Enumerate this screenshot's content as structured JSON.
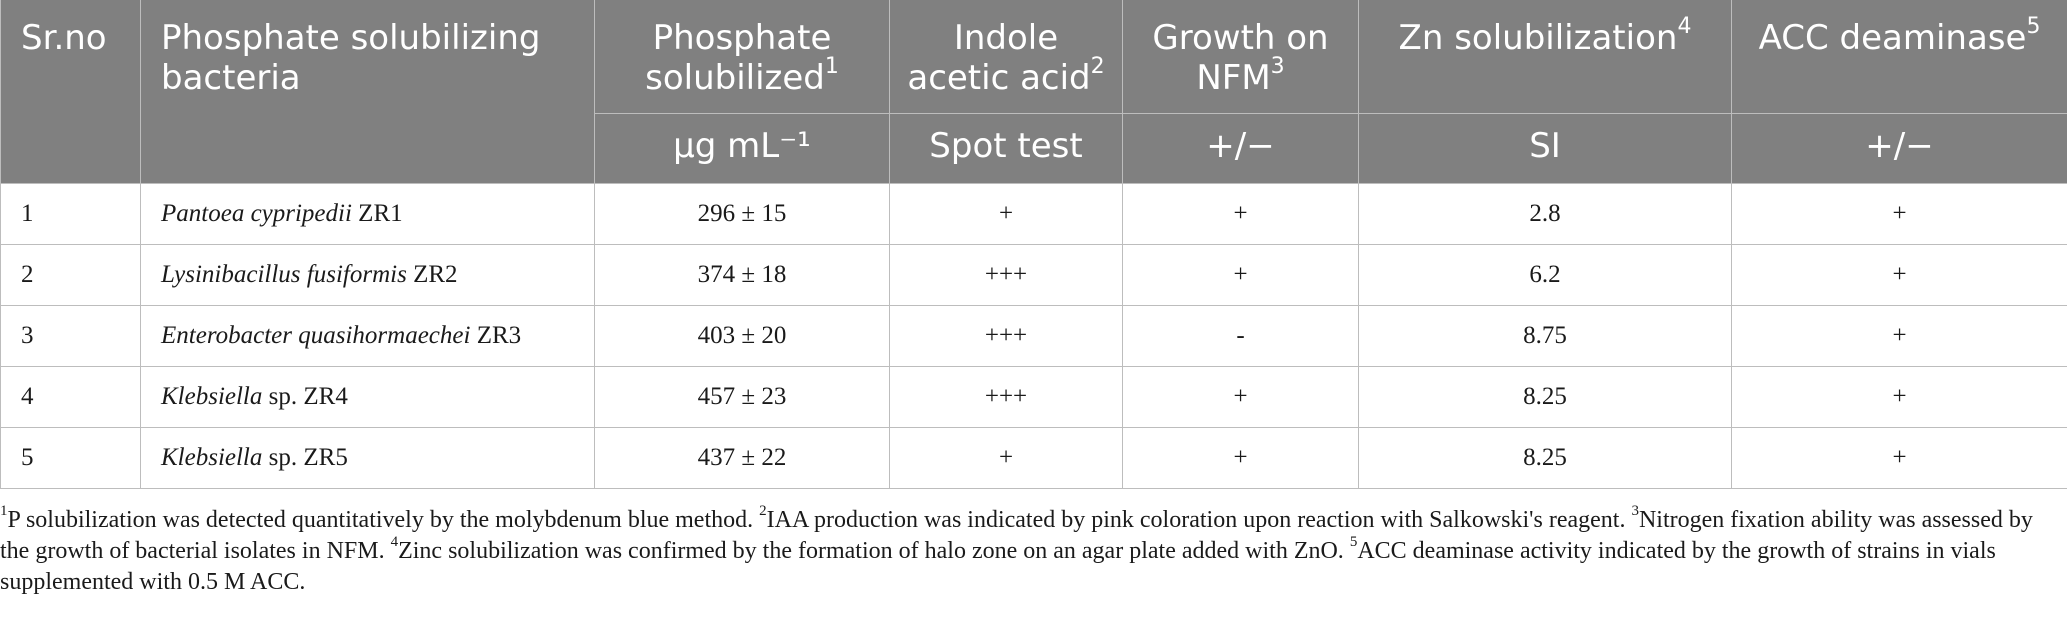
{
  "header": {
    "col1": "Sr.no",
    "col2": "Phosphate solubilizing bacteria",
    "col3": "Phosphate solubilized",
    "col3_sup": "1",
    "col4": "Indole acetic acid",
    "col4_sup": "2",
    "col5": "Growth on NFM",
    "col5_sup": "3",
    "col6": "Zn solubilization",
    "col6_sup": "4",
    "col7": "ACC deaminase",
    "col7_sup": "5",
    "unit3": "µg mL⁻¹",
    "unit4": "Spot test",
    "unit5": "+/−",
    "unit6": "SI",
    "unit7": "+/−"
  },
  "rows": [
    {
      "no": "1",
      "genus": "Pantoea cypripedii",
      "strain": " ZR1",
      "phosphate": "296 ± 15",
      "iaa": "+",
      "nfm": "+",
      "zn": "2.8",
      "acc": "+"
    },
    {
      "no": "2",
      "genus": "Lysinibacillus fusiformis",
      "strain": " ZR2",
      "phosphate": "374 ± 18",
      "iaa": "+++",
      "nfm": "+",
      "zn": "6.2",
      "acc": "+"
    },
    {
      "no": "3",
      "genus": "Enterobacter quasihormaechei",
      "strain": " ZR3",
      "phosphate": "403 ± 20",
      "iaa": "+++",
      "nfm": "-",
      "zn": "8.75",
      "acc": "+"
    },
    {
      "no": "4",
      "genus": "Klebsiella",
      "strain": " sp. ZR4",
      "phosphate": "457 ± 23",
      "iaa": "+++",
      "nfm": "+",
      "zn": "8.25",
      "acc": "+"
    },
    {
      "no": "5",
      "genus": "Klebsiella",
      "strain": " sp. ZR5",
      "phosphate": "437 ± 22",
      "iaa": "+",
      "nfm": "+",
      "zn": "8.25",
      "acc": "+"
    }
  ],
  "footnotes": [
    {
      "sup": "1",
      "text": "P solubilization was detected quantitatively by the molybdenum blue method. "
    },
    {
      "sup": "2",
      "text": "IAA production was indicated by pink coloration upon reaction with Salkowski's reagent. "
    },
    {
      "sup": "3",
      "text": "Nitrogen fixation ability was assessed by the growth of bacterial isolates in NFM. "
    },
    {
      "sup": "4",
      "text": "Zinc solubilization was confirmed by the formation of halo zone on an agar plate added with ZnO. "
    },
    {
      "sup": "5",
      "text": "ACC deaminase activity indicated by the growth of strains in vials supplemented with 0.5 M ACC."
    }
  ],
  "colors": {
    "header_bg": "#808080",
    "header_text": "#ffffff",
    "grid": "#bdbdbd"
  }
}
